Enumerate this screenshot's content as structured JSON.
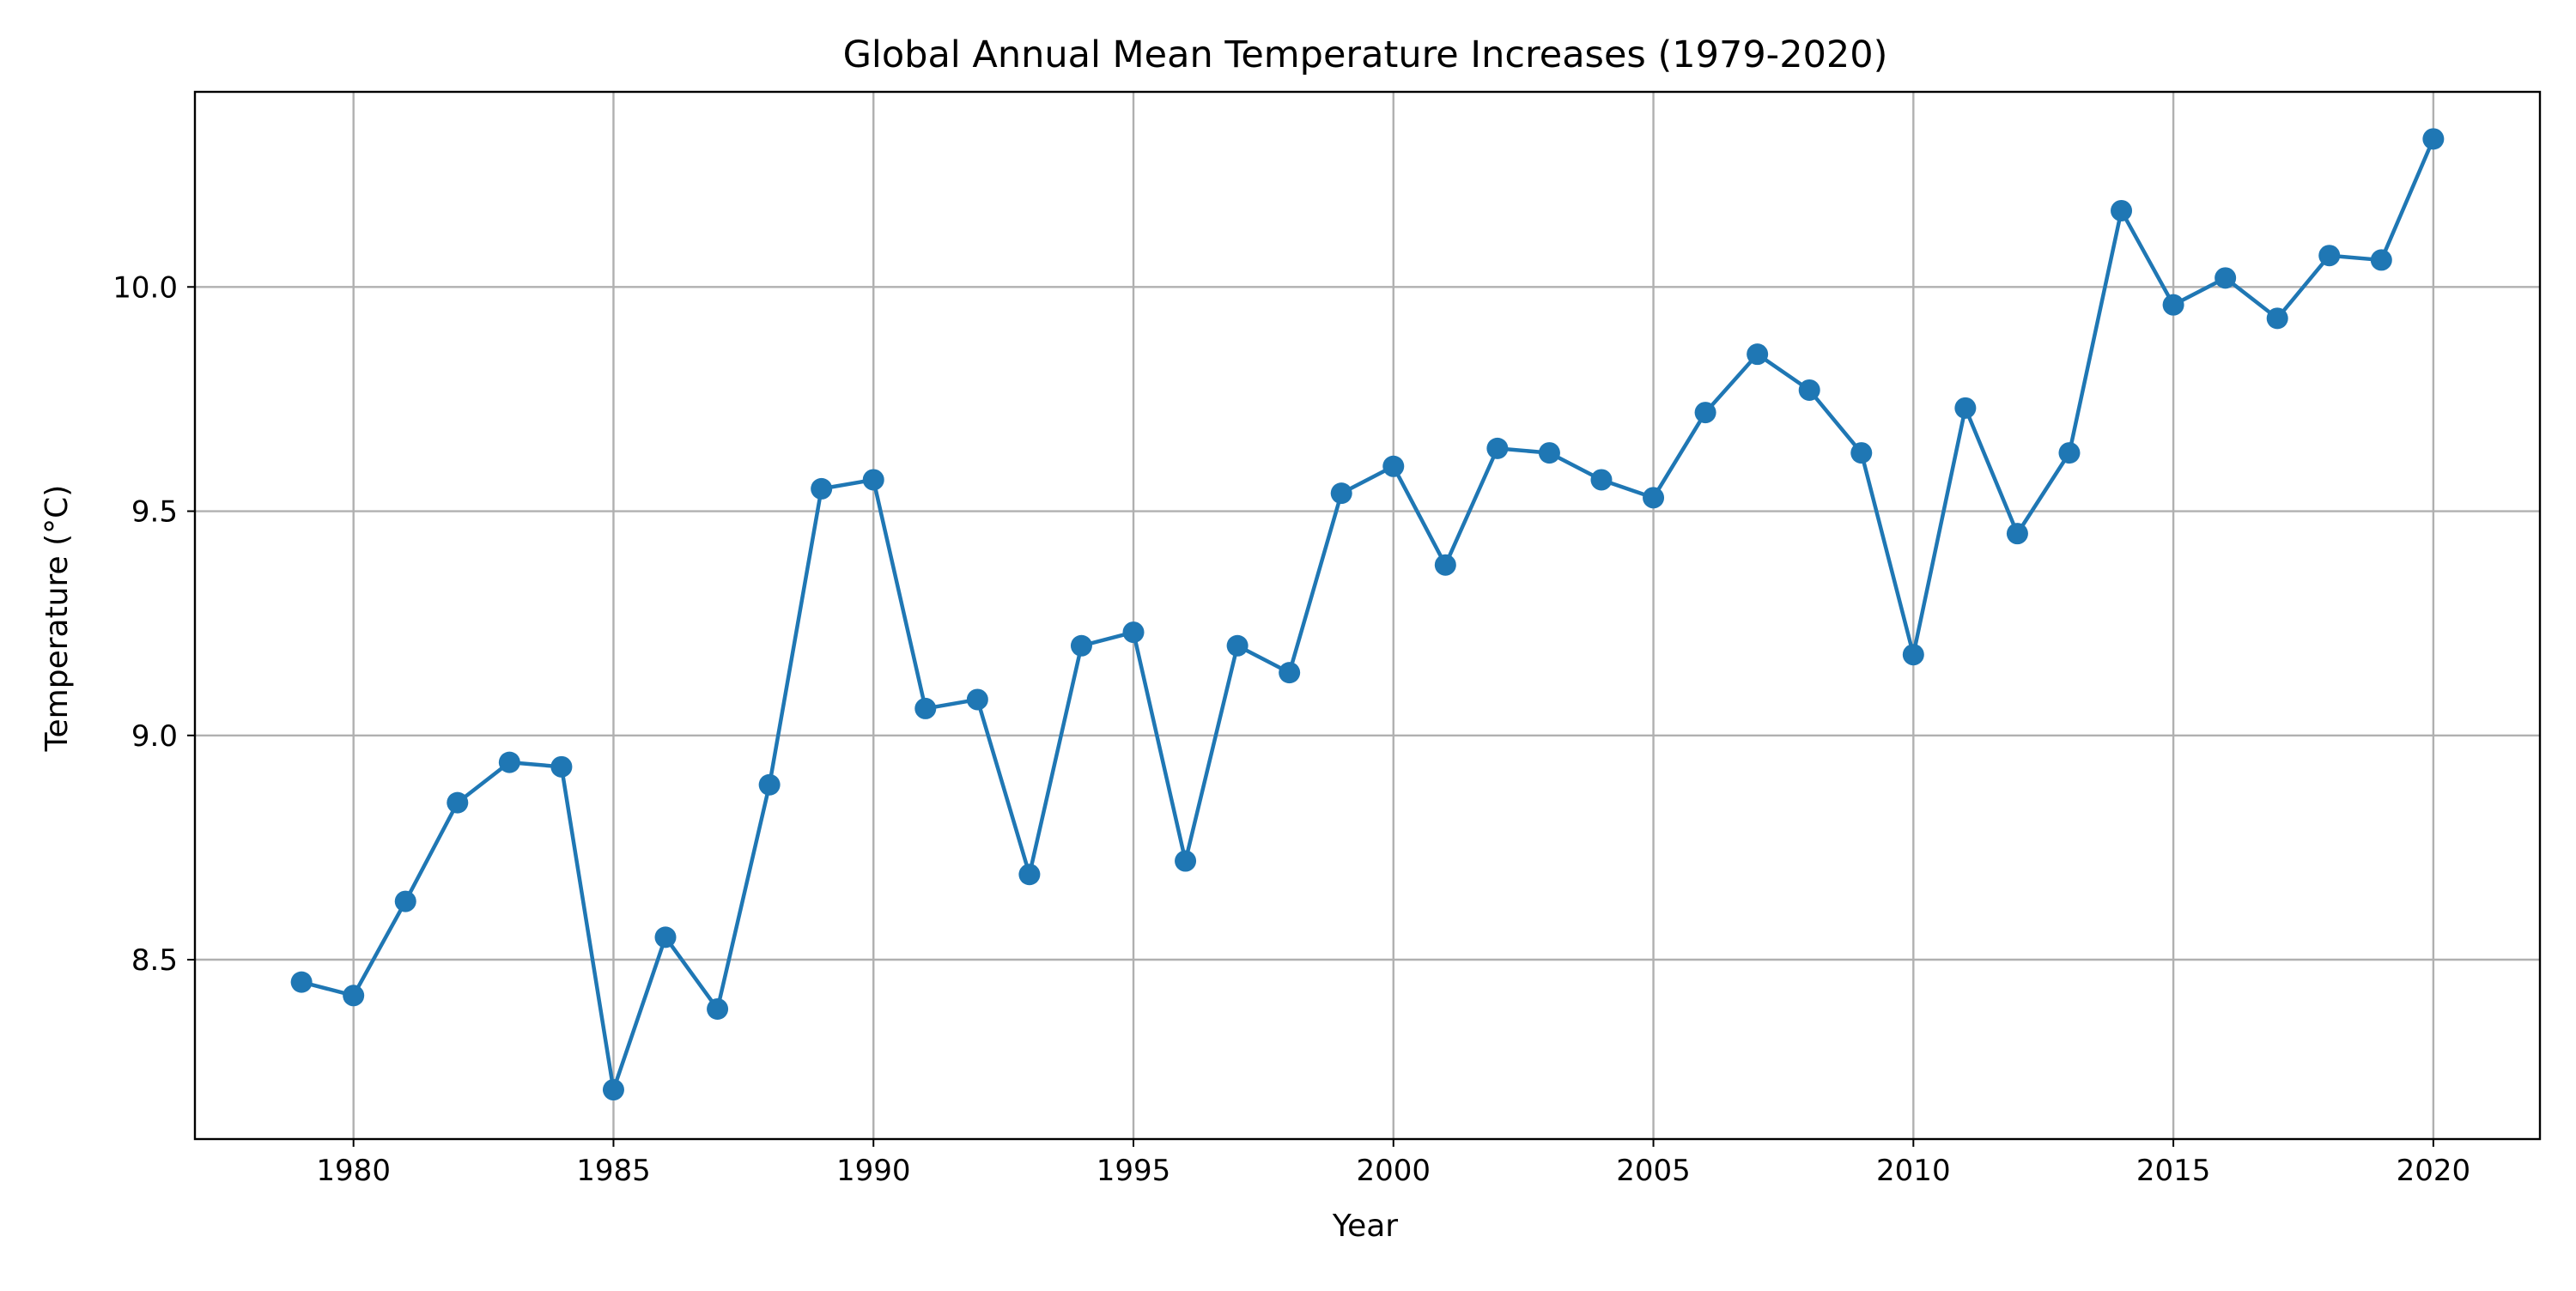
{
  "chart_data": {
    "type": "line",
    "title": "Global Annual Mean Temperature Increases (1979-2020)",
    "xlabel": "Year",
    "ylabel": "Temperature (°C)",
    "xlim": [
      1976.95,
      2022.05
    ],
    "ylim": [
      8.1,
      10.435
    ],
    "xticks": [
      1980,
      1985,
      1990,
      1995,
      2000,
      2005,
      2010,
      2015,
      2020
    ],
    "yticks": [
      8.5,
      9.0,
      9.5,
      10.0
    ],
    "xtick_labels": [
      "1980",
      "1985",
      "1990",
      "1995",
      "2000",
      "2005",
      "2010",
      "2015",
      "2020"
    ],
    "ytick_labels": [
      "8.5",
      "9.0",
      "9.5",
      "10.0"
    ],
    "grid": true,
    "legend": "none",
    "series_color": "#1f77b4",
    "marker": "circle",
    "x": [
      1979,
      1980,
      1981,
      1982,
      1983,
      1984,
      1985,
      1986,
      1987,
      1988,
      1989,
      1990,
      1991,
      1992,
      1993,
      1994,
      1995,
      1996,
      1997,
      1998,
      1999,
      2000,
      2001,
      2002,
      2003,
      2004,
      2005,
      2006,
      2007,
      2008,
      2009,
      2010,
      2011,
      2012,
      2013,
      2014,
      2015,
      2016,
      2017,
      2018,
      2019,
      2020
    ],
    "y": [
      8.45,
      8.42,
      8.63,
      8.85,
      8.94,
      8.93,
      8.21,
      8.55,
      8.39,
      8.89,
      9.55,
      9.57,
      9.06,
      9.08,
      8.69,
      9.2,
      9.23,
      8.72,
      9.2,
      9.14,
      9.54,
      9.6,
      9.38,
      9.64,
      9.63,
      9.57,
      9.53,
      9.72,
      9.85,
      9.77,
      9.63,
      9.18,
      9.73,
      9.45,
      9.63,
      10.17,
      9.96,
      10.02,
      9.93,
      10.07,
      10.06,
      10.33
    ]
  }
}
